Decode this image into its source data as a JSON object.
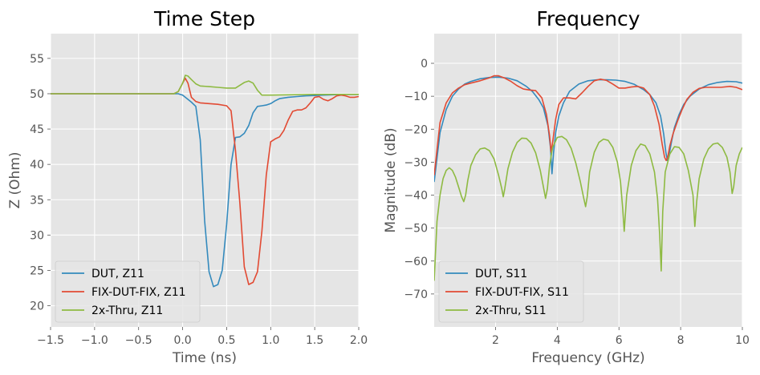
{
  "chart_data": [
    {
      "type": "line",
      "title": "Time Step",
      "xlabel": "Time (ns)",
      "ylabel": "Z (Ohm)",
      "xlim": [
        -1.5,
        2.0
      ],
      "ylim": [
        17,
        58.5
      ],
      "xticks": [
        -1.5,
        -1.0,
        -0.5,
        0.0,
        0.5,
        1.0,
        1.5,
        2.0
      ],
      "xtick_labels": [
        "−1.5",
        "−1.0",
        "−0.5",
        "0.0",
        "0.5",
        "1.0",
        "1.5",
        "2.0"
      ],
      "yticks": [
        20,
        25,
        30,
        35,
        40,
        45,
        50,
        55
      ],
      "ytick_labels": [
        "20",
        "25",
        "30",
        "35",
        "40",
        "45",
        "50",
        "55"
      ],
      "grid": true,
      "legend_position": "lower-left",
      "series": [
        {
          "name": "DUT, Z11",
          "color": "#348abd",
          "x": [
            -1.5,
            -0.5,
            -0.05,
            0.0,
            0.05,
            0.1,
            0.15,
            0.2,
            0.25,
            0.3,
            0.35,
            0.4,
            0.45,
            0.5,
            0.55,
            0.6,
            0.65,
            0.7,
            0.75,
            0.8,
            0.85,
            0.9,
            0.95,
            1.0,
            1.05,
            1.1,
            1.2,
            1.3,
            1.4,
            1.5,
            1.6,
            1.7,
            1.8,
            1.9,
            2.0
          ],
          "y": [
            50,
            50,
            50,
            49.8,
            49.3,
            48.8,
            48.2,
            43.5,
            32,
            24.8,
            22.7,
            23.0,
            25.0,
            31.5,
            40.0,
            43.8,
            43.9,
            44.4,
            45.5,
            47.3,
            48.2,
            48.3,
            48.4,
            48.6,
            49.0,
            49.3,
            49.5,
            49.6,
            49.7,
            49.75,
            49.8,
            49.85,
            49.9,
            49.9,
            49.9
          ]
        },
        {
          "name": "FIX-DUT-FIX, Z11",
          "color": "#e24a33",
          "x": [
            -1.5,
            -0.5,
            -0.1,
            -0.05,
            0.0,
            0.03,
            0.06,
            0.1,
            0.15,
            0.2,
            0.3,
            0.4,
            0.5,
            0.55,
            0.6,
            0.65,
            0.7,
            0.75,
            0.8,
            0.85,
            0.9,
            0.95,
            1.0,
            1.05,
            1.1,
            1.15,
            1.2,
            1.25,
            1.3,
            1.35,
            1.4,
            1.45,
            1.5,
            1.55,
            1.6,
            1.65,
            1.7,
            1.75,
            1.8,
            1.85,
            1.9,
            1.95,
            2.0
          ],
          "y": [
            50,
            50,
            50,
            50.3,
            51.5,
            52.2,
            51.5,
            49.5,
            48.9,
            48.7,
            48.6,
            48.5,
            48.3,
            47.6,
            42.0,
            34.5,
            25.5,
            23.0,
            23.3,
            24.8,
            30.5,
            38.5,
            43.2,
            43.6,
            43.9,
            44.8,
            46.3,
            47.5,
            47.7,
            47.7,
            48.0,
            48.7,
            49.5,
            49.6,
            49.2,
            49.0,
            49.3,
            49.7,
            49.8,
            49.7,
            49.5,
            49.5,
            49.6
          ]
        },
        {
          "name": "2x-Thru, Z11",
          "color": "#8eba42",
          "x": [
            -1.5,
            -0.5,
            -0.1,
            -0.05,
            0.0,
            0.03,
            0.06,
            0.1,
            0.15,
            0.2,
            0.3,
            0.4,
            0.5,
            0.6,
            0.65,
            0.7,
            0.75,
            0.8,
            0.85,
            0.9,
            1.0,
            1.2,
            1.5,
            2.0
          ],
          "y": [
            50,
            50,
            50,
            50.3,
            51.5,
            52.6,
            52.5,
            52.0,
            51.4,
            51.1,
            51.0,
            50.9,
            50.8,
            50.8,
            51.2,
            51.6,
            51.8,
            51.5,
            50.5,
            49.8,
            49.8,
            49.85,
            49.9,
            49.9
          ]
        }
      ]
    },
    {
      "type": "line",
      "title": "Frequency",
      "xlabel": "Frequency (GHz)",
      "ylabel": "Magnitude (dB)",
      "xlim": [
        0.01,
        10.0
      ],
      "ylim": [
        -80,
        9
      ],
      "xticks": [
        2,
        4,
        6,
        8,
        10
      ],
      "xtick_labels": [
        "2",
        "4",
        "6",
        "8",
        "10"
      ],
      "yticks": [
        -70,
        -60,
        -50,
        -40,
        -30,
        -20,
        -10,
        0
      ],
      "ytick_labels": [
        "−70",
        "−60",
        "−50",
        "−40",
        "−30",
        "−20",
        "−10",
        "0"
      ],
      "grid": true,
      "legend_position": "lower-left",
      "series": [
        {
          "name": "DUT, S11",
          "color": "#348abd",
          "x": [
            0.01,
            0.2,
            0.4,
            0.6,
            0.8,
            1.0,
            1.2,
            1.5,
            1.8,
            2.1,
            2.4,
            2.7,
            3.0,
            3.2,
            3.4,
            3.55,
            3.7,
            3.78,
            3.83,
            3.88,
            3.95,
            4.05,
            4.2,
            4.4,
            4.7,
            5.0,
            5.3,
            5.6,
            5.9,
            6.2,
            6.5,
            6.8,
            7.0,
            7.2,
            7.35,
            7.45,
            7.52,
            7.57,
            7.62,
            7.7,
            7.8,
            7.95,
            8.1,
            8.3,
            8.6,
            8.9,
            9.2,
            9.5,
            9.8,
            10.0
          ],
          "y": [
            -36,
            -21,
            -14,
            -10,
            -7.8,
            -6.3,
            -5.5,
            -4.7,
            -4.3,
            -4.2,
            -4.5,
            -5.3,
            -7.0,
            -8.6,
            -11.0,
            -13.5,
            -19.0,
            -25.5,
            -33.5,
            -27.0,
            -21.0,
            -16.0,
            -12.0,
            -8.5,
            -6.3,
            -5.3,
            -5.0,
            -5.0,
            -5.1,
            -5.5,
            -6.4,
            -8.0,
            -9.5,
            -12.0,
            -16.0,
            -21.5,
            -27.0,
            -29.5,
            -28.0,
            -24.0,
            -19.5,
            -15.5,
            -12.5,
            -10.0,
            -7.8,
            -6.5,
            -5.8,
            -5.5,
            -5.6,
            -6.0
          ]
        },
        {
          "name": "FIX-DUT-FIX, S11",
          "color": "#e24a33",
          "x": [
            0.01,
            0.2,
            0.4,
            0.6,
            0.8,
            1.0,
            1.2,
            1.5,
            1.8,
            1.95,
            2.1,
            2.3,
            2.5,
            2.7,
            2.9,
            3.1,
            3.3,
            3.5,
            3.65,
            3.75,
            3.8,
            3.85,
            3.95,
            4.05,
            4.2,
            4.4,
            4.6,
            4.8,
            5.0,
            5.2,
            5.4,
            5.6,
            5.8,
            6.0,
            6.2,
            6.4,
            6.6,
            6.8,
            7.0,
            7.15,
            7.3,
            7.4,
            7.48,
            7.53,
            7.58,
            7.65,
            7.75,
            7.9,
            8.05,
            8.2,
            8.4,
            8.6,
            8.8,
            9.0,
            9.3,
            9.6,
            9.8,
            10.0
          ],
          "y": [
            -34,
            -18,
            -12,
            -9,
            -7.5,
            -6.5,
            -6,
            -5.3,
            -4.4,
            -3.8,
            -3.8,
            -4.5,
            -5.5,
            -6.8,
            -7.8,
            -8.1,
            -8.3,
            -10.5,
            -15.5,
            -22,
            -27,
            -24,
            -17,
            -12.5,
            -10.5,
            -10.5,
            -10.8,
            -9.0,
            -7.0,
            -5.3,
            -4.8,
            -5.2,
            -6.3,
            -7.5,
            -7.5,
            -7.2,
            -7.0,
            -7.5,
            -9.5,
            -13.0,
            -18.5,
            -24.5,
            -28.5,
            -29.5,
            -28.5,
            -25.0,
            -21.5,
            -17.5,
            -14.0,
            -11.0,
            -8.8,
            -7.6,
            -7.3,
            -7.3,
            -7.3,
            -7.0,
            -7.3,
            -8.0
          ]
        },
        {
          "name": "2x-Thru, S11",
          "color": "#8eba42",
          "x": [
            0.01,
            0.1,
            0.2,
            0.3,
            0.4,
            0.5,
            0.6,
            0.7,
            0.8,
            0.9,
            0.97,
            1.03,
            1.1,
            1.2,
            1.35,
            1.5,
            1.65,
            1.8,
            1.95,
            2.1,
            2.2,
            2.25,
            2.3,
            2.4,
            2.55,
            2.7,
            2.85,
            3.0,
            3.15,
            3.3,
            3.45,
            3.55,
            3.62,
            3.68,
            3.75,
            3.85,
            4.0,
            4.15,
            4.3,
            4.45,
            4.6,
            4.75,
            4.85,
            4.92,
            4.97,
            5.05,
            5.2,
            5.35,
            5.5,
            5.65,
            5.8,
            5.95,
            6.05,
            6.12,
            6.17,
            6.25,
            6.4,
            6.55,
            6.7,
            6.85,
            7.0,
            7.15,
            7.25,
            7.32,
            7.37,
            7.42,
            7.5,
            7.65,
            7.8,
            7.95,
            8.1,
            8.25,
            8.4,
            8.46,
            8.52,
            8.6,
            8.75,
            8.9,
            9.05,
            9.2,
            9.35,
            9.5,
            9.6,
            9.67,
            9.72,
            9.8,
            9.9,
            10.0
          ],
          "y": [
            -66,
            -48,
            -40,
            -35,
            -32.5,
            -31.7,
            -32.5,
            -34.5,
            -37.5,
            -40.5,
            -42,
            -40,
            -35.5,
            -31,
            -27.8,
            -26,
            -25.7,
            -26.5,
            -29,
            -34,
            -38,
            -40.5,
            -38,
            -32,
            -27,
            -24,
            -22.7,
            -22.8,
            -24.2,
            -27.2,
            -32.5,
            -37.5,
            -41,
            -38,
            -31,
            -25.5,
            -22.5,
            -22.2,
            -23.2,
            -25.8,
            -30.2,
            -36,
            -40.5,
            -43.5,
            -40.5,
            -33,
            -27,
            -24,
            -23,
            -23.4,
            -25.5,
            -30,
            -36,
            -44,
            -51,
            -40,
            -31,
            -26.5,
            -24.5,
            -25,
            -27.5,
            -33,
            -41,
            -52,
            -63,
            -45,
            -33,
            -27.5,
            -25.3,
            -25.5,
            -27.5,
            -32.5,
            -40,
            -49.5,
            -42,
            -35,
            -29,
            -26,
            -24.5,
            -24.2,
            -25.5,
            -28.5,
            -33,
            -39.5,
            -37.5,
            -31,
            -27.5,
            -25.5
          ]
        }
      ]
    }
  ]
}
